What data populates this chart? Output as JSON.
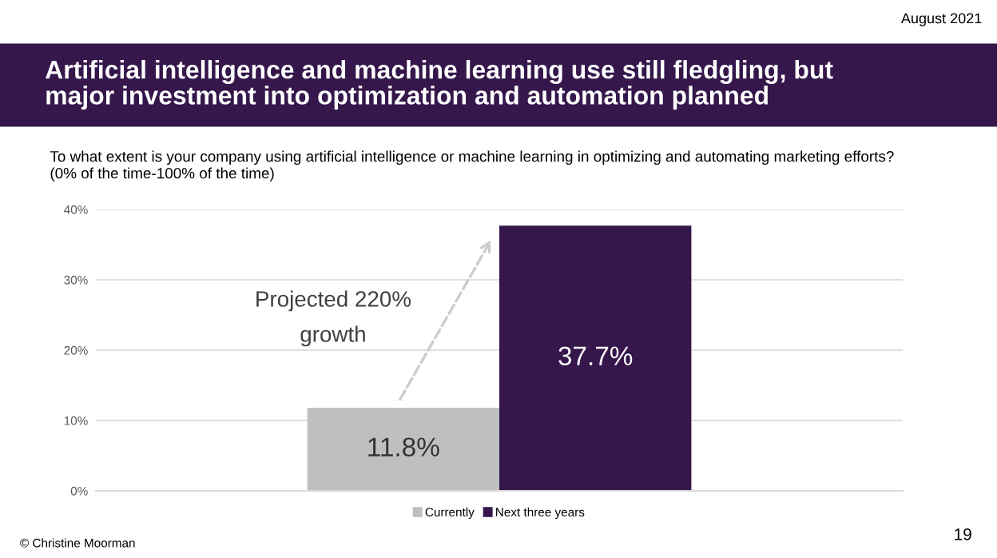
{
  "chart_data": {
    "type": "bar",
    "title": "Artificial intelligence and machine learning use still fledgling, but\nmajor investment into optimization and automation planned",
    "subtitle": "To what extent is your company using artificial intelligence or machine learning in optimizing and automating marketing efforts?\n(0% of the time-100% of the time)",
    "categories": [
      null
    ],
    "series": [
      {
        "name": "Currently",
        "color": "#bfbfbf",
        "values": [
          11.8
        ],
        "value_labels": [
          "11.8%"
        ]
      },
      {
        "name": "Next three years",
        "color": "#35174b",
        "values": [
          37.7
        ],
        "value_labels": [
          "37.7%"
        ]
      }
    ],
    "ylim": [
      0,
      40
    ],
    "yticks": [
      {
        "value": 0,
        "label": "0%"
      },
      {
        "value": 10,
        "label": "10%"
      },
      {
        "value": 20,
        "label": "20%"
      },
      {
        "value": 30,
        "label": "30%"
      },
      {
        "value": 40,
        "label": "40%"
      }
    ],
    "grid": "y",
    "legend": "bottom",
    "annotations": [
      "Projected 220%\ngrowth",
      "August 2021",
      "© Christine Moorman",
      "19"
    ]
  }
}
